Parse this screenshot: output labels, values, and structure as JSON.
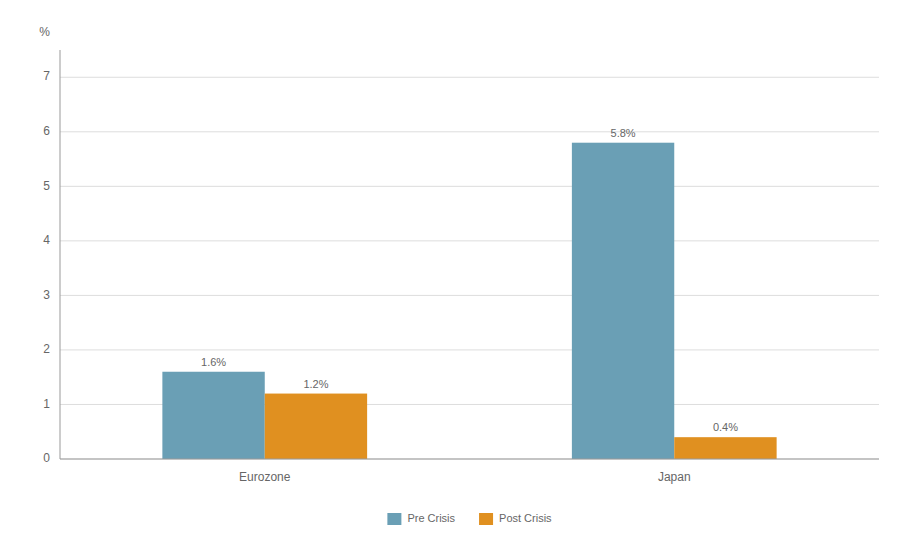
{
  "chart_data": {
    "type": "bar",
    "y_label": "%",
    "categories": [
      "Eurozone",
      "Japan"
    ],
    "series": [
      {
        "name": "Pre Crisis",
        "color": "#6a9fb5",
        "values": [
          1.6,
          5.8
        ],
        "value_labels": [
          "1.6%",
          "5.8%"
        ]
      },
      {
        "name": "Post Crisis",
        "color": "#e09020",
        "values": [
          1.2,
          0.4
        ],
        "value_labels": [
          "1.2%",
          "0.4%"
        ]
      }
    ],
    "ylim": [
      0,
      7.5
    ],
    "yticks": [
      0,
      1,
      2,
      3,
      4,
      5,
      6,
      7
    ],
    "grid": true,
    "data_labels": true,
    "legend": "bottom"
  }
}
